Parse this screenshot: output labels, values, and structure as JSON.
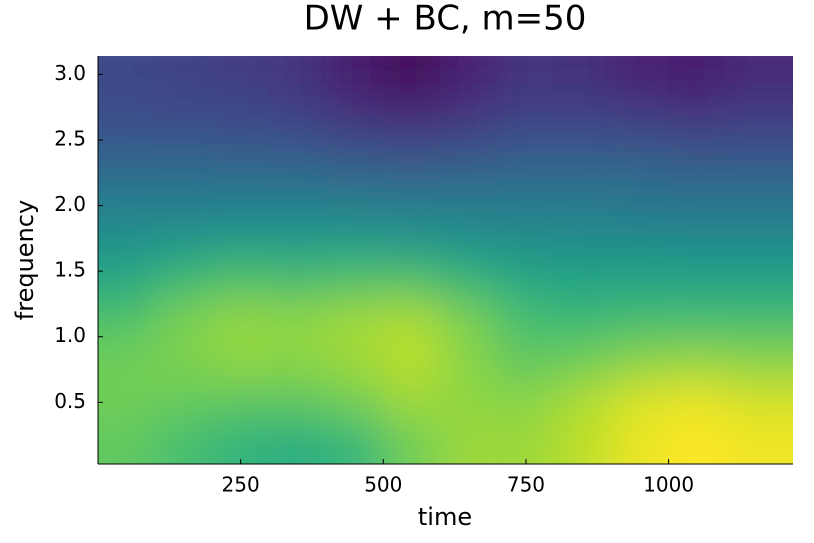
{
  "chart_data": {
    "type": "heatmap",
    "title": "DW + BC, m=50",
    "x_label": "time",
    "y_label": "frequency",
    "x": [
      50,
      150,
      250,
      350,
      450,
      550,
      650,
      750,
      850,
      950,
      1050,
      1150
    ],
    "y": [
      0.19,
      0.5,
      0.81,
      1.12,
      1.43,
      1.74,
      2.05,
      2.36,
      2.67,
      2.98
    ],
    "z": [
      [
        0.75,
        0.7,
        0.65,
        0.62,
        0.66,
        0.78,
        0.85,
        0.85,
        0.9,
        0.97,
        1.0,
        0.98
      ],
      [
        0.78,
        0.76,
        0.74,
        0.74,
        0.78,
        0.85,
        0.83,
        0.82,
        0.88,
        0.95,
        0.97,
        0.94
      ],
      [
        0.78,
        0.8,
        0.83,
        0.82,
        0.85,
        0.9,
        0.82,
        0.75,
        0.78,
        0.82,
        0.84,
        0.82
      ],
      [
        0.72,
        0.8,
        0.84,
        0.83,
        0.86,
        0.88,
        0.8,
        0.7,
        0.68,
        0.7,
        0.7,
        0.7
      ],
      [
        0.6,
        0.68,
        0.72,
        0.7,
        0.72,
        0.72,
        0.66,
        0.6,
        0.58,
        0.58,
        0.58,
        0.58
      ],
      [
        0.5,
        0.52,
        0.54,
        0.54,
        0.54,
        0.52,
        0.5,
        0.49,
        0.48,
        0.48,
        0.47,
        0.47
      ],
      [
        0.42,
        0.42,
        0.42,
        0.42,
        0.41,
        0.4,
        0.4,
        0.4,
        0.4,
        0.39,
        0.38,
        0.38
      ],
      [
        0.32,
        0.32,
        0.31,
        0.3,
        0.28,
        0.26,
        0.28,
        0.3,
        0.3,
        0.3,
        0.28,
        0.28
      ],
      [
        0.24,
        0.23,
        0.22,
        0.2,
        0.15,
        0.12,
        0.16,
        0.2,
        0.2,
        0.18,
        0.16,
        0.18
      ],
      [
        0.22,
        0.2,
        0.18,
        0.15,
        0.08,
        0.02,
        0.1,
        0.15,
        0.14,
        0.1,
        0.08,
        0.12
      ]
    ],
    "colorscale": [
      "#440154",
      "#482878",
      "#3e4989",
      "#31688e",
      "#26828e",
      "#1f9e89",
      "#35b779",
      "#6ece58",
      "#b5de2b",
      "#fde725"
    ],
    "zlim": [
      0,
      1
    ],
    "xlim": [
      0,
      1218
    ],
    "xticks": [
      250,
      500,
      750,
      1000
    ],
    "ylim": [
      0.03,
      3.14
    ],
    "yticks": [
      0.5,
      {
        "value": 1,
        "label": "1.0"
      },
      1.5,
      {
        "value": 2,
        "label": "2.0"
      },
      2.5,
      {
        "value": 3,
        "label": "3.0"
      }
    ]
  }
}
